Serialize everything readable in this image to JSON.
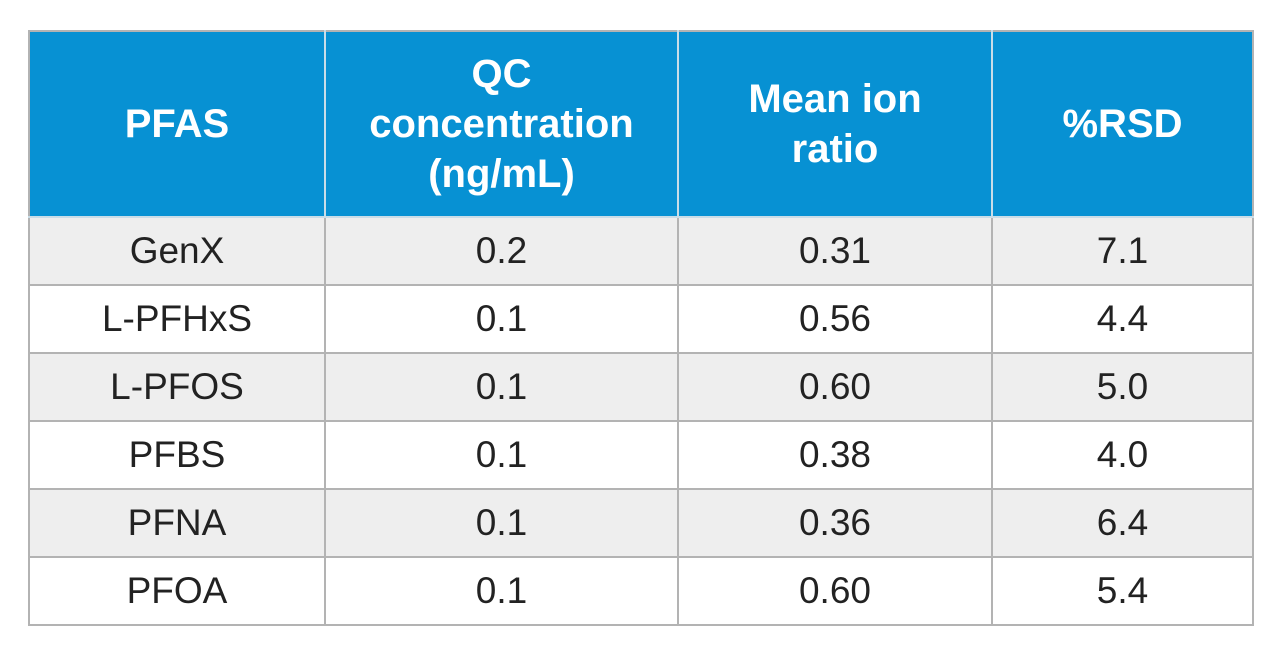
{
  "table": {
    "headers": [
      [
        "PFAS"
      ],
      [
        "QC",
        "concentration",
        "(ng/mL)"
      ],
      [
        "Mean ion",
        "ratio"
      ],
      [
        "%RSD"
      ]
    ],
    "rows": [
      [
        "GenX",
        "0.2",
        "0.31",
        "7.1"
      ],
      [
        "L-PFHxS",
        "0.1",
        "0.56",
        "4.4"
      ],
      [
        "L-PFOS",
        "0.1",
        "0.60",
        "5.0"
      ],
      [
        "PFBS",
        "0.1",
        "0.38",
        "4.0"
      ],
      [
        "PFNA",
        "0.1",
        "0.36",
        "6.4"
      ],
      [
        "PFOA",
        "0.1",
        "0.60",
        "5.4"
      ]
    ]
  },
  "colors": {
    "header_bg": "#0791d3",
    "header_text": "#ffffff",
    "row_alt_bg": "#eeeeee",
    "border": "#b3b3b3"
  }
}
